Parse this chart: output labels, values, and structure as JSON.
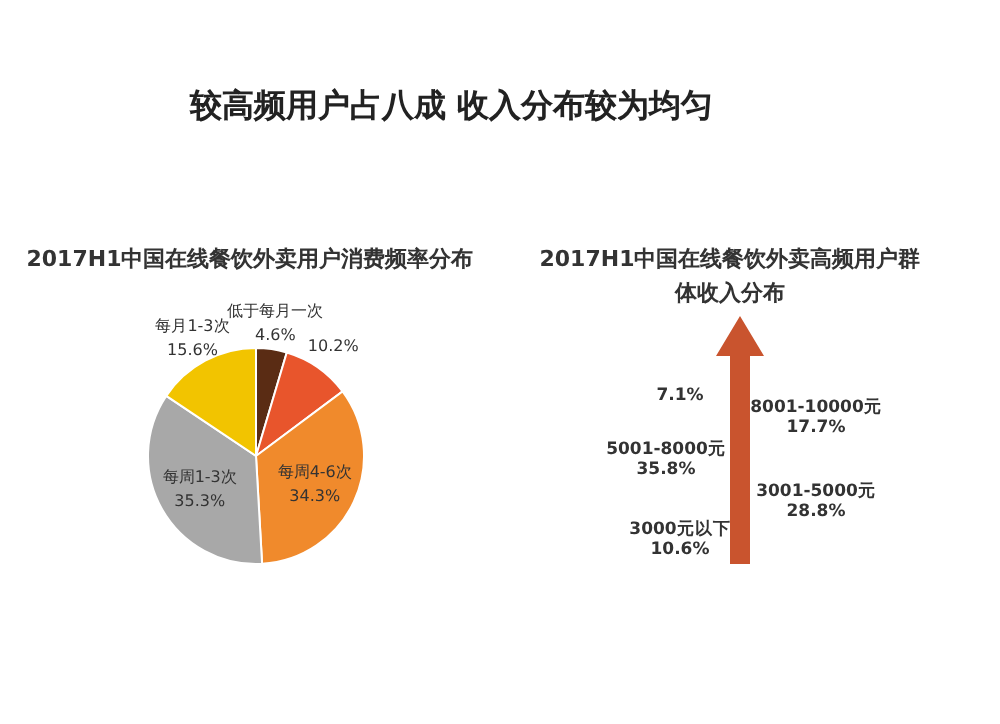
{
  "chart_data": [
    {
      "type": "pie",
      "title": "2017H1中国在线餐饮外卖用户消费频率分布",
      "annotations": [
        "较高频用户占八成 收入分布较为均匀"
      ],
      "categories": [
        "低于每月一次",
        null,
        "每周4-6次",
        "每周1-3次",
        "每月1-3次"
      ],
      "values": [
        4.6,
        10.2,
        34.3,
        35.3,
        15.6
      ],
      "value_labels": [
        "4.6%",
        "10.2%",
        "34.3%",
        "35.3%",
        "15.6%"
      ],
      "colors": [
        "#5a2c14",
        "#e8552c",
        "#f08a2c",
        "#a8a8a8",
        "#f2c400"
      ]
    },
    {
      "type": "other",
      "title": "2017H1中国在线餐饮外卖高频用户群体收入分布",
      "categories": [
        null,
        "8001-10000元",
        "5001-8000元",
        "3001-5000元",
        "3000元以下"
      ],
      "values": [
        7.1,
        17.7,
        35.8,
        28.8,
        10.6
      ],
      "value_labels": [
        "7.1%",
        "17.7%",
        "35.8%",
        "28.8%",
        "10.6%"
      ]
    }
  ]
}
